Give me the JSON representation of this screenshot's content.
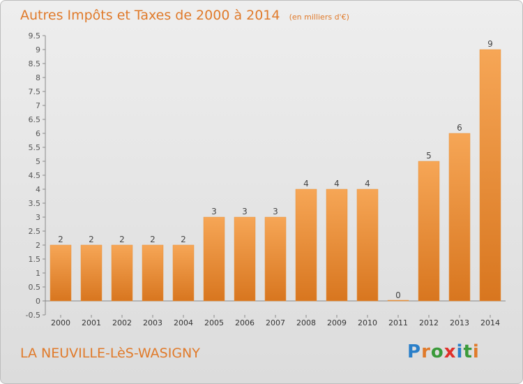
{
  "header": {
    "title": "Autres Impôts et Taxes de 2000 à 2014",
    "unit": "(en milliers d'€)"
  },
  "footer": {
    "commune": "LA NEUVILLE-LèS-WASIGNY",
    "logo": "Proxiti"
  },
  "colors": {
    "accent": "#e07a2a",
    "bar_light": "#f6a656",
    "bar_dark": "#d8761f",
    "logo_letters": [
      "#2a7fc9",
      "#e07a2a",
      "#3a9a3a",
      "#e0302a",
      "#2a7fc9",
      "#3a9a3a",
      "#e07a2a"
    ]
  },
  "chart_data": {
    "type": "bar",
    "title": "Autres Impôts et Taxes de 2000 à 2014",
    "subtitle": "(en milliers d'€)",
    "categories": [
      "2000",
      "2001",
      "2002",
      "2003",
      "2004",
      "2005",
      "2006",
      "2007",
      "2008",
      "2009",
      "2010",
      "2011",
      "2012",
      "2013",
      "2014"
    ],
    "values": [
      2,
      2,
      2,
      2,
      2,
      3,
      3,
      3,
      4,
      4,
      4,
      0,
      5,
      6,
      9
    ],
    "data_labels": [
      "2",
      "2",
      "2",
      "2",
      "2",
      "3",
      "3",
      "3",
      "4",
      "4",
      "4",
      "0",
      "5",
      "6",
      "9"
    ],
    "yticks": [
      "-0.5",
      "0",
      "0.5",
      "1",
      "1.5",
      "2",
      "2.5",
      "3",
      "3.5",
      "4",
      "4.5",
      "5",
      "5.5",
      "6",
      "6.5",
      "7",
      "7.5",
      "8",
      "8.5",
      "9",
      "9.5"
    ],
    "ylim": [
      -0.5,
      9.5
    ],
    "grid": false,
    "xlabel": "",
    "ylabel": ""
  }
}
